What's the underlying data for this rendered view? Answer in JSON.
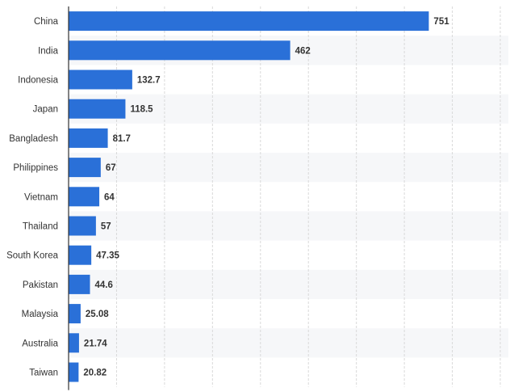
{
  "chart_data": {
    "type": "bar",
    "orientation": "horizontal",
    "categories": [
      "China",
      "India",
      "Indonesia",
      "Japan",
      "Bangladesh",
      "Philippines",
      "Vietnam",
      "Thailand",
      "South Korea",
      "Pakistan",
      "Malaysia",
      "Australia",
      "Taiwan"
    ],
    "values": [
      751,
      462,
      132.7,
      118.5,
      81.7,
      67,
      64,
      57,
      47.35,
      44.6,
      25.08,
      21.74,
      20.82
    ],
    "value_labels": [
      "751",
      "462",
      "132.7",
      "118.5",
      "81.7",
      "67",
      "64",
      "57",
      "47.35",
      "44.6",
      "25.08",
      "21.74",
      "20.82"
    ],
    "xlim": [
      0,
      900
    ],
    "gridlines": "vertical-dashed",
    "colors": {
      "bar": "#2a70d8",
      "stripe": "#f6f7f9",
      "grid": "#d9d9d9",
      "axis": "#333333"
    }
  }
}
